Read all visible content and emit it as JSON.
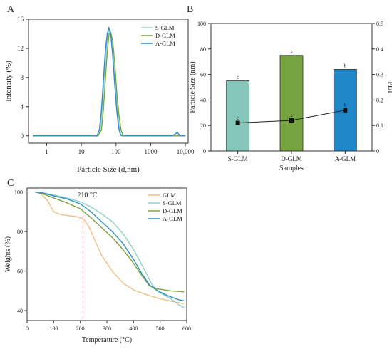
{
  "chart_data": [
    {
      "panel": "A",
      "type": "line",
      "xlabel": "Particle Size (d,nm)",
      "ylabel": "Intensity (%)",
      "xscale": "log",
      "xlim": [
        0.3,
        12000
      ],
      "ylim": [
        -1,
        16
      ],
      "xticks": [
        1,
        10,
        100,
        1000,
        10000
      ],
      "xtick_labels": [
        "1",
        "10",
        "100",
        "1000",
        "10,000"
      ],
      "yticks": [
        0,
        4,
        8,
        12,
        16
      ],
      "grid": false,
      "legend_position": "top-right",
      "series": [
        {
          "name": "S-GLM",
          "color": "#8fd0c8",
          "points": [
            [
              0.4,
              0
            ],
            [
              10,
              0
            ],
            [
              30,
              0
            ],
            [
              35,
              0.8
            ],
            [
              40,
              3.5
            ],
            [
              45,
              7.5
            ],
            [
              52,
              11.5
            ],
            [
              58,
              14
            ],
            [
              64,
              14.6
            ],
            [
              72,
              13.8
            ],
            [
              82,
              11
            ],
            [
              95,
              7
            ],
            [
              110,
              3.5
            ],
            [
              125,
              1
            ],
            [
              140,
              0.1
            ],
            [
              155,
              0
            ],
            [
              5000,
              0
            ],
            [
              6500,
              0
            ],
            [
              8000,
              0
            ],
            [
              10000,
              0
            ]
          ]
        },
        {
          "name": "D-GLM",
          "color": "#7ea33d",
          "points": [
            [
              0.4,
              0
            ],
            [
              10,
              0
            ],
            [
              30,
              0
            ],
            [
              38,
              0.8
            ],
            [
              43,
              3.5
            ],
            [
              49,
              7.5
            ],
            [
              56,
              11.5
            ],
            [
              63,
              14
            ],
            [
              70,
              14.2
            ],
            [
              80,
              13
            ],
            [
              92,
              10
            ],
            [
              105,
              6
            ],
            [
              120,
              3
            ],
            [
              140,
              0.8
            ],
            [
              160,
              0
            ],
            [
              5000,
              0
            ],
            [
              6500,
              0
            ],
            [
              8000,
              0
            ],
            [
              10000,
              0
            ]
          ]
        },
        {
          "name": "A-GLM",
          "color": "#2f8fc7",
          "points": [
            [
              0.4,
              0
            ],
            [
              10,
              0
            ],
            [
              28,
              0
            ],
            [
              33,
              0.8
            ],
            [
              38,
              3.5
            ],
            [
              43,
              7.5
            ],
            [
              49,
              11.5
            ],
            [
              56,
              14
            ],
            [
              62,
              14.8
            ],
            [
              70,
              14
            ],
            [
              80,
              11
            ],
            [
              92,
              7
            ],
            [
              105,
              3.5
            ],
            [
              120,
              1
            ],
            [
              135,
              0.1
            ],
            [
              150,
              0
            ],
            [
              4000,
              0
            ],
            [
              5000,
              0.2
            ],
            [
              5800,
              0.5
            ],
            [
              6500,
              0.2
            ],
            [
              7000,
              0
            ],
            [
              10000,
              0
            ]
          ]
        }
      ]
    },
    {
      "panel": "B",
      "type": "bar",
      "xlabel": "Samples",
      "ylabel": "Particle Size (nm)",
      "y2label": "PDI",
      "categories": [
        "S-GLM",
        "D-GLM",
        "A-GLM"
      ],
      "values": [
        55,
        75,
        64
      ],
      "bar_colors": [
        "#86c7bb",
        "#76a33f",
        "#1f86c8"
      ],
      "bar_letters": [
        "c",
        "a",
        "b"
      ],
      "ylim": [
        0,
        100
      ],
      "yticks": [
        0,
        20,
        40,
        60,
        80,
        100
      ],
      "y2lim": [
        0,
        0.5
      ],
      "y2ticks": [
        0,
        0.1,
        0.2,
        0.3,
        0.4,
        0.5
      ],
      "pdi": [
        0.11,
        0.12,
        0.16
      ],
      "pdi_letters": [
        "c",
        "a",
        "b"
      ],
      "grid": false
    },
    {
      "panel": "C",
      "type": "line",
      "xlabel": "Temperature (°C)",
      "ylabel": "Weights (%)",
      "xlim": [
        0,
        600
      ],
      "ylim": [
        35,
        102
      ],
      "xticks": [
        0,
        100,
        200,
        300,
        400,
        500,
        600
      ],
      "yticks": [
        40,
        60,
        80,
        100
      ],
      "annotation": {
        "text": "210 °C",
        "x": 210
      },
      "grid": false,
      "legend_position": "top-center",
      "series": [
        {
          "name": "GLM",
          "color": "#f0be82",
          "points": [
            [
              30,
              100
            ],
            [
              50,
              99.5
            ],
            [
              80,
              95
            ],
            [
              100,
              90
            ],
            [
              130,
              88.5
            ],
            [
              160,
              88
            ],
            [
              190,
              87.5
            ],
            [
              210,
              86.5
            ],
            [
              230,
              83
            ],
            [
              250,
              77
            ],
            [
              280,
              68
            ],
            [
              320,
              60
            ],
            [
              360,
              54
            ],
            [
              400,
              50.5
            ],
            [
              450,
              48
            ],
            [
              500,
              46
            ],
            [
              550,
              44.5
            ],
            [
              590,
              43.5
            ]
          ]
        },
        {
          "name": "S-GLM",
          "color": "#8fd0c8",
          "points": [
            [
              30,
              100
            ],
            [
              60,
              99.5
            ],
            [
              100,
              98.5
            ],
            [
              150,
              97
            ],
            [
              200,
              95
            ],
            [
              240,
              92.5
            ],
            [
              280,
              89
            ],
            [
              320,
              85
            ],
            [
              360,
              79
            ],
            [
              400,
              71
            ],
            [
              440,
              61
            ],
            [
              470,
              53
            ],
            [
              500,
              49
            ],
            [
              540,
              46
            ],
            [
              570,
              43
            ],
            [
              590,
              41.5
            ]
          ]
        },
        {
          "name": "D-GLM",
          "color": "#7ea33d",
          "points": [
            [
              30,
              100
            ],
            [
              60,
              99
            ],
            [
              100,
              97
            ],
            [
              150,
              94.5
            ],
            [
              200,
              91.5
            ],
            [
              240,
              87
            ],
            [
              280,
              82
            ],
            [
              320,
              77
            ],
            [
              360,
              71
            ],
            [
              400,
              64
            ],
            [
              430,
              58
            ],
            [
              460,
              52.5
            ],
            [
              490,
              51
            ],
            [
              540,
              50
            ],
            [
              590,
              49.5
            ]
          ]
        },
        {
          "name": "A-GLM",
          "color": "#2f8fc7",
          "points": [
            [
              30,
              100
            ],
            [
              60,
              99.5
            ],
            [
              100,
              98
            ],
            [
              150,
              96.5
            ],
            [
              200,
              94
            ],
            [
              240,
              90
            ],
            [
              280,
              85
            ],
            [
              320,
              80
            ],
            [
              360,
              74
            ],
            [
              400,
              66
            ],
            [
              430,
              59
            ],
            [
              460,
              53
            ],
            [
              490,
              50
            ],
            [
              530,
              47.5
            ],
            [
              570,
              45.5
            ],
            [
              590,
              45
            ]
          ]
        }
      ]
    }
  ]
}
